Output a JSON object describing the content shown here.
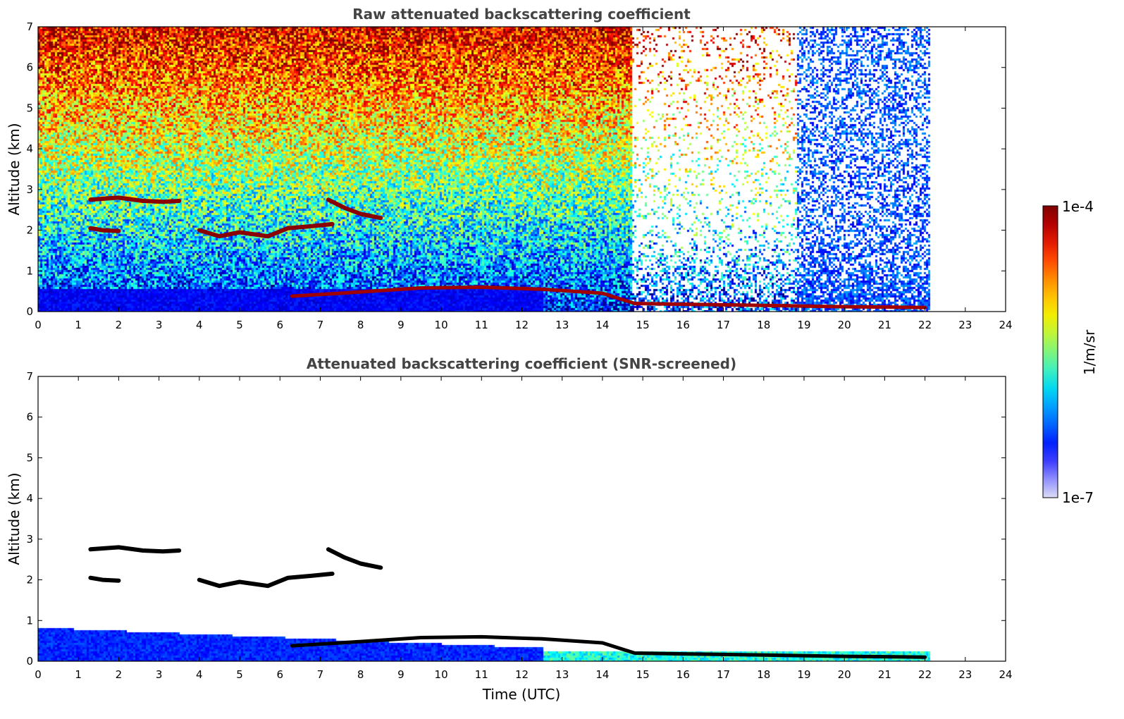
{
  "chart_data": [
    {
      "type": "heatmap",
      "title": "Raw attenuated backscattering coefficient",
      "xlabel": "",
      "ylabel": "Altitude (km)",
      "xlim": [
        0,
        24
      ],
      "ylim": [
        0,
        7
      ],
      "xticks": [
        "0",
        "1",
        "2",
        "3",
        "4",
        "5",
        "6",
        "7",
        "8",
        "9",
        "10",
        "11",
        "12",
        "13",
        "14",
        "15",
        "16",
        "17",
        "18",
        "19",
        "20",
        "21",
        "22",
        "23",
        "24"
      ],
      "yticks": [
        "0",
        "1",
        "2",
        "3",
        "4",
        "5",
        "6",
        "7"
      ],
      "data_end_time": 22.1,
      "features": [
        {
          "kind": "cloud_layer",
          "points": [
            [
              1.3,
              2.75
            ],
            [
              2.0,
              2.8
            ],
            [
              2.6,
              2.72
            ],
            [
              3.1,
              2.7
            ],
            [
              3.5,
              2.72
            ]
          ]
        },
        {
          "kind": "cloud_layer",
          "points": [
            [
              1.3,
              2.05
            ],
            [
              1.6,
              2.0
            ],
            [
              2.0,
              1.98
            ]
          ]
        },
        {
          "kind": "cloud_layer",
          "points": [
            [
              4.0,
              2.0
            ],
            [
              4.5,
              1.85
            ],
            [
              5.0,
              1.95
            ],
            [
              5.7,
              1.85
            ],
            [
              6.2,
              2.05
            ],
            [
              6.8,
              2.1
            ],
            [
              7.3,
              2.15
            ]
          ]
        },
        {
          "kind": "cloud_layer",
          "points": [
            [
              7.2,
              2.75
            ],
            [
              7.6,
              2.55
            ],
            [
              8.0,
              2.4
            ],
            [
              8.5,
              2.3
            ]
          ]
        },
        {
          "kind": "boundary_layer",
          "points": [
            [
              6.3,
              0.38
            ],
            [
              7.5,
              0.45
            ],
            [
              9.5,
              0.58
            ],
            [
              11.0,
              0.6
            ],
            [
              12.5,
              0.55
            ],
            [
              14.0,
              0.45
            ],
            [
              14.8,
              0.2
            ],
            [
              16.0,
              0.18
            ],
            [
              18.0,
              0.15
            ],
            [
              20.0,
              0.12
            ],
            [
              22.0,
              0.1
            ]
          ]
        }
      ]
    },
    {
      "type": "heatmap",
      "title": "Attenuated backscattering coefficient (SNR-screened)",
      "xlabel": "Time (UTC)",
      "ylabel": "Altitude (km)",
      "xlim": [
        0,
        24
      ],
      "ylim": [
        0,
        7
      ],
      "xticks": [
        "0",
        "1",
        "2",
        "3",
        "4",
        "5",
        "6",
        "7",
        "8",
        "9",
        "10",
        "11",
        "12",
        "13",
        "14",
        "15",
        "16",
        "17",
        "18",
        "19",
        "20",
        "21",
        "22",
        "23",
        "24"
      ],
      "yticks": [
        "0",
        "1",
        "2",
        "3",
        "4",
        "5",
        "6",
        "7"
      ],
      "data_end_time": 22.1
    }
  ],
  "colorbar": {
    "label": "1/m/sr",
    "max_label": "1e-4",
    "min_label": "1e-7",
    "colors": [
      "#7f0000",
      "#b20000",
      "#e31a00",
      "#ff4a00",
      "#ff8a00",
      "#ffc200",
      "#f2ee00",
      "#bff53a",
      "#7ff57c",
      "#3ff0bf",
      "#00d8f0",
      "#00a0ff",
      "#0064ff",
      "#0020ff",
      "#3d3dff",
      "#8f8fff",
      "#dcdcf5"
    ]
  }
}
